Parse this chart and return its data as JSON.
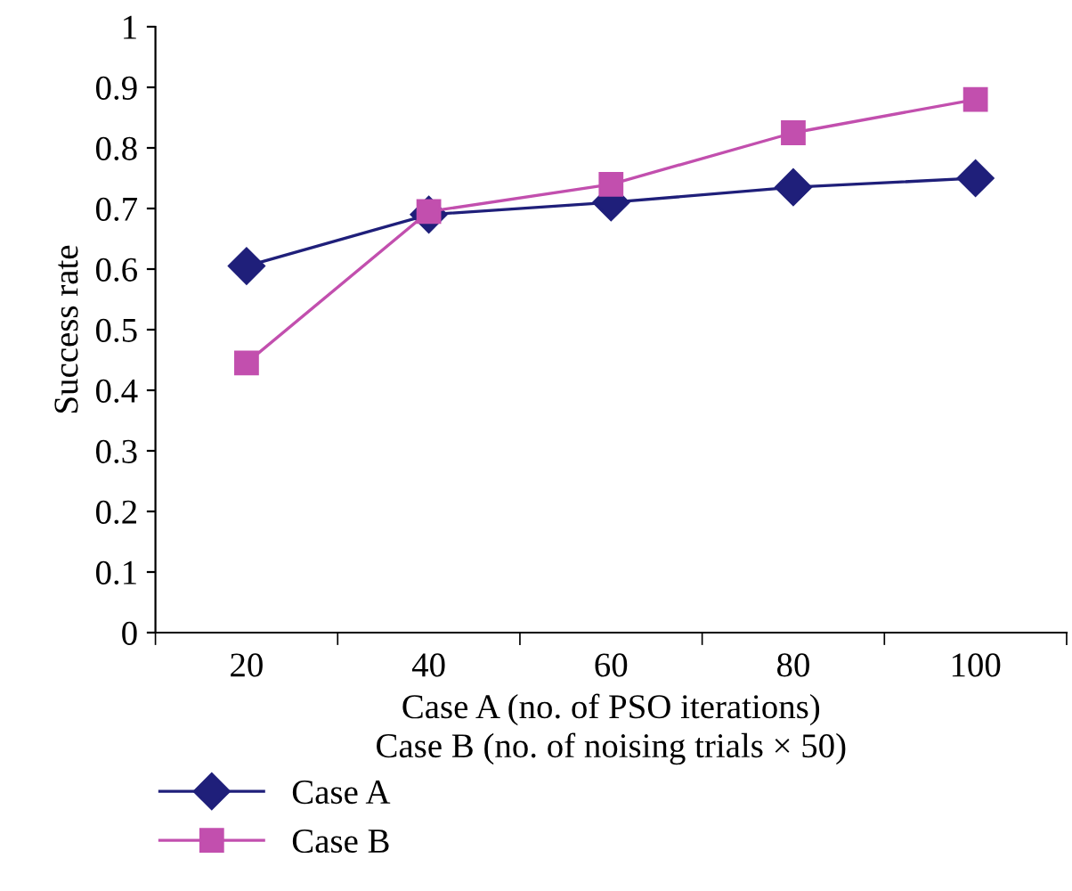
{
  "chart_data": {
    "type": "line",
    "xlabel": "Case A (no. of PSO iterations)\nCase B (no. of noising trials × 50)",
    "ylabel": "Success rate",
    "categories": [
      "20",
      "40",
      "60",
      "80",
      "100"
    ],
    "series": [
      {
        "name": "Case A",
        "color": "#1f1f7a",
        "marker": "diamond",
        "values": [
          0.605,
          0.69,
          0.71,
          0.735,
          0.75
        ]
      },
      {
        "name": "Case B",
        "color": "#c24fae",
        "marker": "square",
        "values": [
          0.445,
          0.695,
          0.74,
          0.825,
          0.88
        ]
      }
    ],
    "ylim": [
      0,
      1
    ],
    "yticks": [
      0,
      0.1,
      0.2,
      0.3,
      0.4,
      0.5,
      0.6,
      0.7,
      0.8,
      0.9,
      1
    ],
    "grid": false,
    "legend": "bottom left",
    "line_style": "solid"
  }
}
